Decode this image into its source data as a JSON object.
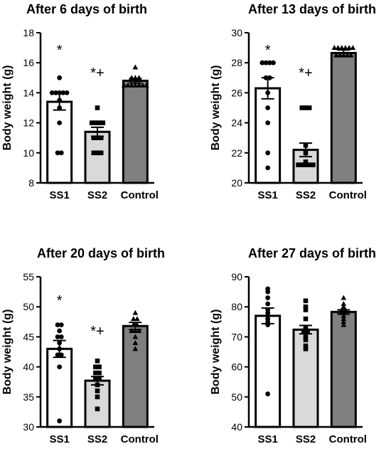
{
  "chart_data": [
    {
      "type": "bar",
      "title": "After 6 days of birth",
      "ylabel": "Body weight (g)",
      "categories": [
        "SS1",
        "SS2",
        "Control"
      ],
      "values": [
        13.4,
        11.4,
        14.8
      ],
      "errors": [
        0.55,
        0.3,
        0.15
      ],
      "ylim": [
        8,
        18
      ],
      "yticks": [
        8,
        10,
        12,
        14,
        16,
        18
      ],
      "fill_colors": [
        "#ffffff",
        "#d9d9d9",
        "#808080"
      ],
      "markers": [
        "circle",
        "square",
        "triangle"
      ],
      "points": [
        [
          15,
          14,
          14,
          14,
          14,
          14,
          13.5,
          13,
          12,
          10,
          10
        ],
        [
          13,
          12,
          12,
          12,
          12,
          11,
          11,
          11,
          10,
          10,
          10
        ],
        [
          15.7,
          15,
          15,
          15,
          14.5,
          14.5,
          14.5,
          14.5,
          14.5,
          14.5,
          14.5
        ]
      ],
      "annotations": [
        "*",
        "*+",
        ""
      ],
      "annotation_values": [
        16.9,
        15.4,
        null
      ]
    },
    {
      "type": "bar",
      "title": "After 13 days of birth",
      "ylabel": "Body weight (g)",
      "categories": [
        "SS1",
        "SS2",
        "Control"
      ],
      "values": [
        26.3,
        22.2,
        28.65
      ],
      "errors": [
        0.7,
        0.45,
        0.2
      ],
      "ylim": [
        20,
        30
      ],
      "yticks": [
        20,
        22,
        24,
        26,
        28,
        30
      ],
      "fill_colors": [
        "#ffffff",
        "#d9d9d9",
        "#808080"
      ],
      "markers": [
        "circle",
        "square",
        "triangle"
      ],
      "points": [
        [
          28,
          28,
          28,
          28,
          27,
          27,
          26,
          25,
          24,
          22,
          21
        ],
        [
          25,
          25,
          25,
          22.5,
          22,
          21.4,
          21.2,
          21.2,
          21.2,
          21.2,
          21.2
        ],
        [
          29,
          29,
          29,
          29,
          29,
          29,
          28.5,
          28.5,
          28.5,
          28.5,
          28.5
        ]
      ],
      "annotations": [
        "*",
        "*+",
        ""
      ],
      "annotation_values": [
        28.9,
        27.4,
        null
      ]
    },
    {
      "type": "bar",
      "title": "After 20 days of birth",
      "ylabel": "Body weight (g)",
      "categories": [
        "SS1",
        "SS2",
        "Control"
      ],
      "values": [
        43,
        37.7,
        46.8
      ],
      "errors": [
        1.4,
        0.7,
        0.6
      ],
      "ylim": [
        30,
        55
      ],
      "yticks": [
        30,
        35,
        40,
        45,
        50,
        55
      ],
      "fill_colors": [
        "#ffffff",
        "#d9d9d9",
        "#808080"
      ],
      "markers": [
        "circle",
        "square",
        "triangle"
      ],
      "points": [
        [
          47,
          47,
          46,
          45,
          45,
          44,
          43,
          42,
          42,
          40,
          31
        ],
        [
          41,
          40,
          40,
          39,
          39,
          38,
          38,
          37,
          36,
          35,
          33
        ],
        [
          49,
          48,
          48,
          47,
          47,
          46,
          46,
          46,
          45,
          44,
          43
        ]
      ],
      "annotations": [
        "*",
        "*+",
        ""
      ],
      "annotation_values": [
        51.2,
        46.1,
        null
      ]
    },
    {
      "type": "bar",
      "title": "After 27 days of birth",
      "ylabel": "Body weight (g)",
      "categories": [
        "SS1",
        "SS2",
        "Control"
      ],
      "values": [
        77,
        72.4,
        78.3
      ],
      "errors": [
        2.6,
        1.4,
        0.7
      ],
      "ylim": [
        40,
        90
      ],
      "yticks": [
        40,
        50,
        60,
        70,
        80,
        90
      ],
      "fill_colors": [
        "#ffffff",
        "#d9d9d9",
        "#808080"
      ],
      "markers": [
        "circle",
        "square",
        "triangle"
      ],
      "points": [
        [
          86,
          85,
          83,
          81,
          79,
          78,
          77,
          76,
          75,
          74,
          51
        ],
        [
          82,
          80,
          79,
          76,
          73,
          72,
          72,
          70,
          69,
          67,
          66
        ],
        [
          83,
          81,
          80,
          79,
          79,
          78,
          78,
          77,
          76,
          75,
          74
        ]
      ],
      "annotations": [
        "",
        "",
        ""
      ],
      "annotation_values": [
        null,
        null,
        null
      ]
    }
  ]
}
